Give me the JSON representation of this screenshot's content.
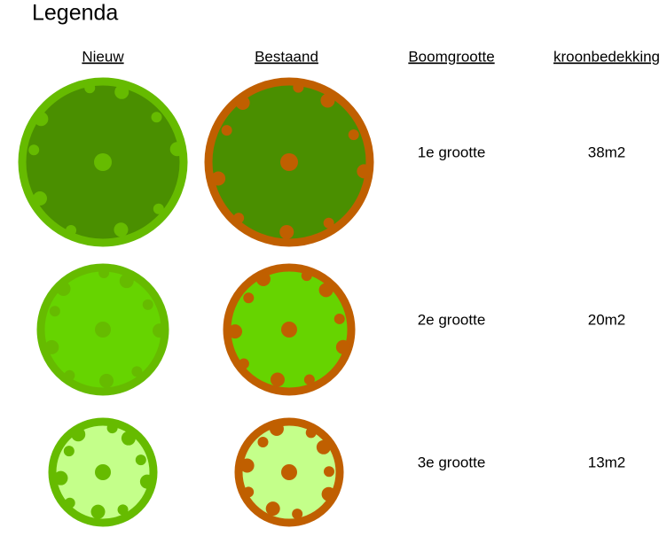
{
  "title": "Legenda",
  "headers": [
    "Nieuw",
    "Bestaand",
    "Boomgrootte",
    "kroonbedekking"
  ],
  "rows": [
    {
      "size": "1e grootte",
      "cover": "38m2"
    },
    {
      "size": "2e grootte",
      "cover": "20m2"
    },
    {
      "size": "3e grootte",
      "cover": "13m2"
    }
  ]
}
